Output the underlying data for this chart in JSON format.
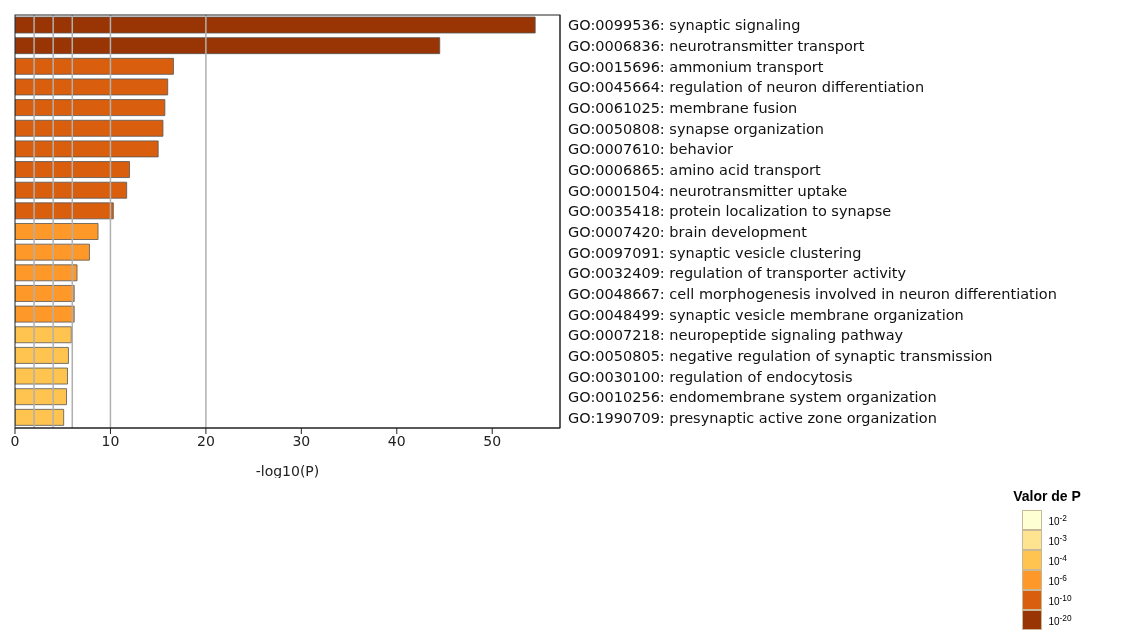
{
  "chart_data": {
    "type": "bar",
    "orientation": "horizontal",
    "stacked": true,
    "xlabel": "-log10(P)",
    "legend_title": "Valor de P",
    "legend": "bottom right",
    "categories": [
      "GO:0099536: synaptic signaling",
      "GO:0006836: neurotransmitter transport",
      "GO:0015696: ammonium transport",
      "GO:0045664: regulation of neuron differentiation",
      "GO:0061025: membrane fusion",
      "GO:0050808: synapse organization",
      "GO:0007610: behavior",
      "GO:0006865: amino acid transport",
      "GO:0001504: neurotransmitter uptake",
      "GO:0035418: protein localization to synapse",
      "GO:0007420: brain development",
      "GO:0097091: synaptic vesicle clustering",
      "GO:0032409: regulation of transporter activity",
      "GO:0048667: cell morphogenesis involved in neuron differentiation",
      "GO:0048499: synaptic vesicle membrane organization",
      "GO:0007218: neuropeptide signaling pathway",
      "GO:0050805: negative regulation of synaptic transmission",
      "GO:0030100: regulation of endocytosis",
      "GO:0010256: endomembrane system organization",
      "GO:1990709: presynaptic active zone organization"
    ],
    "series": [
      {
        "name": "10$^{-2}$",
        "color": "#ffffd4",
        "values": [
          null,
          null,
          null,
          null,
          null,
          null,
          null,
          null,
          null,
          null,
          null,
          null,
          null,
          null,
          null,
          null,
          null,
          null,
          null,
          null
        ]
      },
      {
        "name": "10$^{-3}$",
        "color": "#fee391",
        "values": [
          null,
          null,
          null,
          null,
          null,
          null,
          null,
          null,
          null,
          null,
          null,
          null,
          null,
          null,
          null,
          null,
          null,
          null,
          null,
          null
        ]
      },
      {
        "name": "10$^{-4}$",
        "color": "#fec44f",
        "values": [
          null,
          null,
          null,
          null,
          null,
          null,
          null,
          null,
          null,
          null,
          null,
          null,
          null,
          null,
          null,
          5.9,
          5.6,
          5.5,
          5.4,
          5.1
        ]
      },
      {
        "name": "10$^{-6}$",
        "color": "#fe9929",
        "values": [
          null,
          null,
          null,
          null,
          null,
          null,
          null,
          null,
          null,
          null,
          8.7,
          7.8,
          6.5,
          6.2,
          6.2,
          null,
          null,
          null,
          null,
          null
        ]
      },
      {
        "name": "10$^{-10}$",
        "color": "#d95f0e",
        "values": [
          null,
          null,
          16.6,
          16.0,
          15.7,
          15.5,
          15.0,
          12.0,
          11.7,
          10.3,
          null,
          null,
          null,
          null,
          null,
          null,
          null,
          null,
          null,
          null
        ]
      },
      {
        "name": "10$^{-20}$",
        "color": "#993404",
        "values": [
          54.5,
          44.5,
          null,
          null,
          null,
          null,
          null,
          null,
          null,
          null,
          null,
          null,
          null,
          null,
          null,
          null,
          null,
          null,
          null,
          null
        ]
      }
    ],
    "xlim": [
      0,
      57.1
    ],
    "xticks": [
      0,
      10,
      20,
      30,
      40,
      50
    ],
    "ref_lines": [
      {
        "axis": "x",
        "value": 2,
        "color": "#b0b0b0"
      },
      {
        "axis": "x",
        "value": 4,
        "color": "#b0b0b0"
      },
      {
        "axis": "x",
        "value": 6,
        "color": "#b0b0b0"
      },
      {
        "axis": "x",
        "value": 10,
        "color": "#b0b0b0"
      },
      {
        "axis": "x",
        "value": 20,
        "color": "#b0b0b0"
      }
    ]
  }
}
